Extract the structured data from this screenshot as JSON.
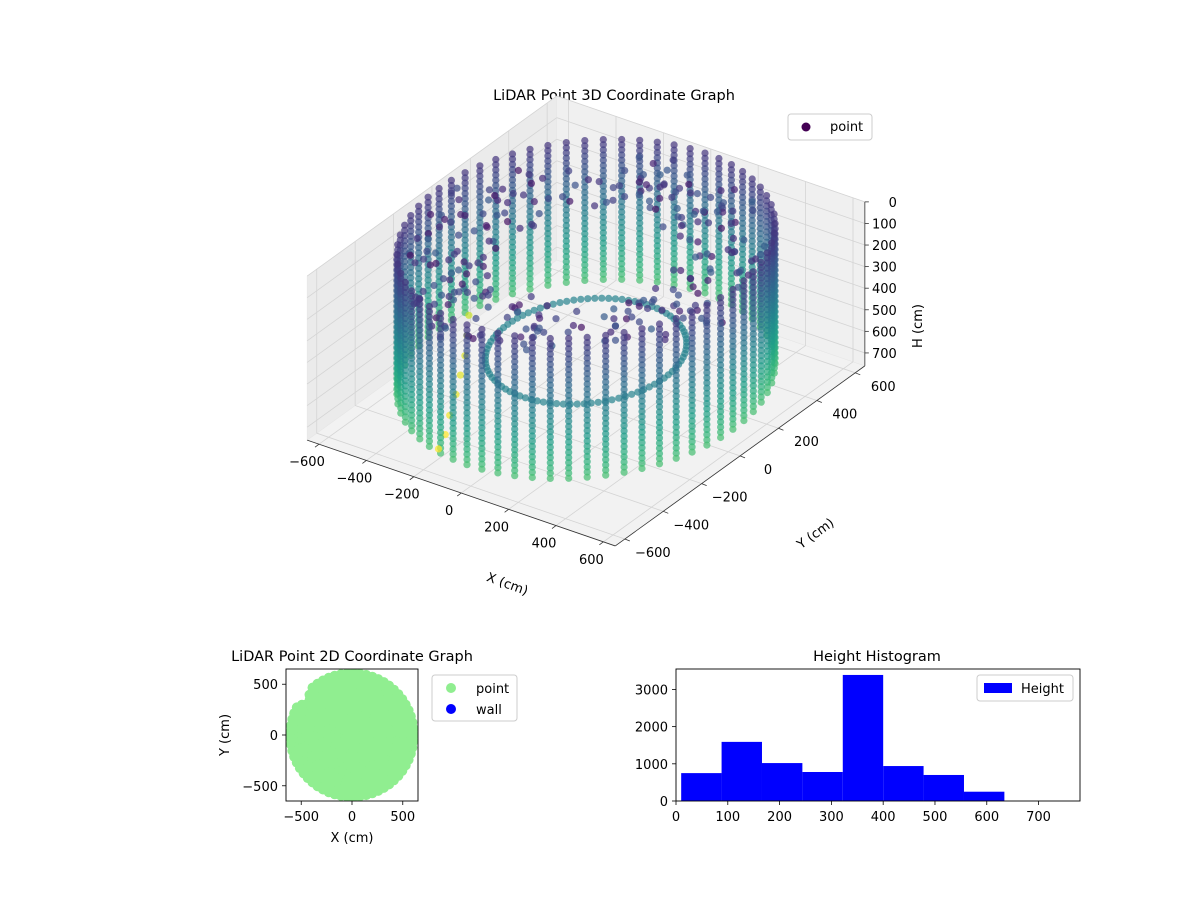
{
  "chart_data": [
    {
      "type": "scatter",
      "projection": "3d",
      "title": "LiDAR Point 3D Coordinate Graph",
      "xlabel": "X (cm)",
      "ylabel": "Y (cm)",
      "zlabel": "H (cm)",
      "xlim": [
        -650,
        650
      ],
      "ylim": [
        -650,
        650
      ],
      "zlim": [
        760,
        0
      ],
      "z_inverted": true,
      "xticks": [
        -600,
        -400,
        -200,
        0,
        200,
        400,
        600
      ],
      "yticks": [
        -600,
        -400,
        -200,
        0,
        200,
        400,
        600
      ],
      "zticks": [
        0,
        100,
        200,
        300,
        400,
        500,
        600,
        700
      ],
      "colormap": "viridis",
      "grid": true,
      "legend": "top-right",
      "series": [
        {
          "name": "point",
          "color": "#440154",
          "shape": "ring-shaped room scan with inner void and a corridor extending toward +X",
          "outer_radius_cm": 620,
          "inner_radius_cm": 330,
          "height_range_cm": [
            0,
            650
          ],
          "corridor_points": [
            {
              "x": -120,
              "y": -620,
              "h": 620
            },
            {
              "x": -140,
              "y": -560,
              "h": 600
            },
            {
              "x": -170,
              "y": -500,
              "h": 560
            },
            {
              "x": -200,
              "y": -430,
              "h": 520
            },
            {
              "x": -230,
              "y": -370,
              "h": 480
            },
            {
              "x": -260,
              "y": -310,
              "h": 440
            },
            {
              "x": -300,
              "y": -250,
              "h": 400
            },
            {
              "x": -340,
              "y": -190,
              "h": 360
            }
          ]
        }
      ]
    },
    {
      "type": "scatter",
      "title": "LiDAR Point 2D Coordinate Graph",
      "xlabel": "X (cm)",
      "ylabel": "Y (cm)",
      "xlim": [
        -650,
        650
      ],
      "ylim": [
        -650,
        650
      ],
      "xticks": [
        -500,
        0,
        500
      ],
      "yticks": [
        -500,
        0,
        500
      ],
      "legend": "outside-right",
      "series": [
        {
          "name": "point",
          "color": "#90ee90",
          "shape": "filled disc of radius ~620 cm with notch at upper-left"
        },
        {
          "name": "wall",
          "color": "#0000ff",
          "values": []
        }
      ]
    },
    {
      "type": "bar",
      "title": "Height Histogram",
      "xlabel": "",
      "ylabel": "",
      "xlim": [
        0,
        780
      ],
      "ylim": [
        0,
        3550
      ],
      "xticks": [
        0,
        100,
        200,
        300,
        400,
        500,
        600,
        700
      ],
      "yticks": [
        0,
        1000,
        2000,
        3000
      ],
      "bin_edges": [
        10,
        88,
        166,
        244,
        322,
        400,
        478,
        556,
        634,
        712,
        790
      ],
      "series": [
        {
          "name": "Height",
          "color": "#0000ff",
          "values": [
            750,
            1590,
            1020,
            780,
            3390,
            940,
            700,
            250,
            0,
            0
          ]
        }
      ],
      "legend": "top-right"
    }
  ]
}
